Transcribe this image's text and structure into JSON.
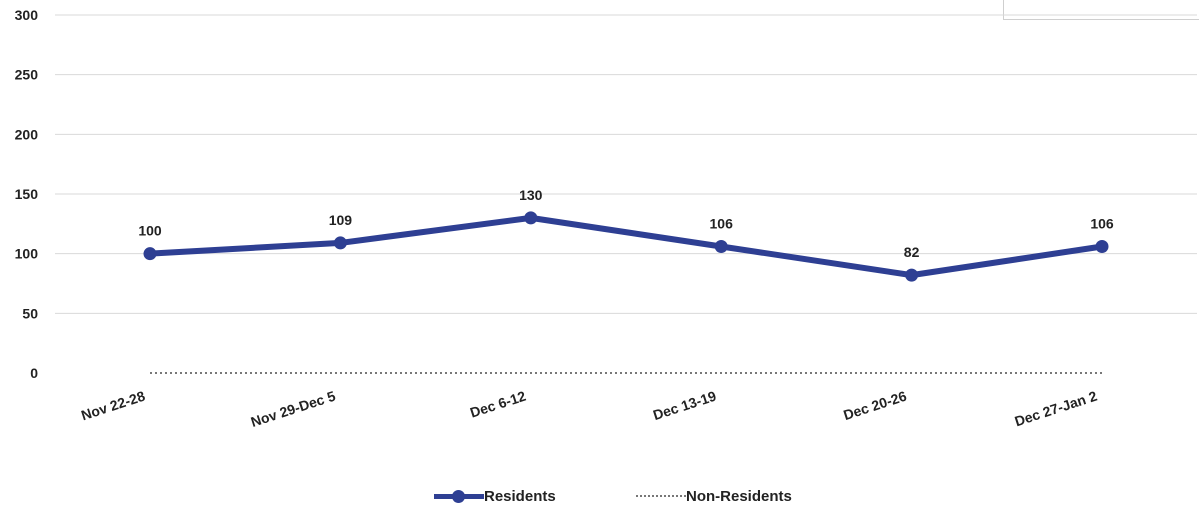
{
  "chart_data": {
    "type": "line",
    "categories": [
      "Nov 22-28",
      "Nov 29-Dec 5",
      "Dec 6-12",
      "Dec 13-19",
      "Dec 20-26",
      "Dec 27-Jan 2"
    ],
    "series": [
      {
        "name": "Residents",
        "values": [
          100,
          109,
          130,
          106,
          82,
          106
        ],
        "color": "#2e3f93",
        "style": "solid-with-markers",
        "data_labels": true
      },
      {
        "name": "Non-Residents",
        "values": [
          0,
          0,
          0,
          0,
          0,
          0
        ],
        "color": "#777777",
        "style": "dotted",
        "data_labels": false
      }
    ],
    "ylim": [
      0,
      300
    ],
    "yticks": [
      0,
      50,
      100,
      150,
      200,
      250,
      300
    ],
    "grid": true,
    "legend_position": "bottom",
    "title": "",
    "xlabel": "",
    "ylabel": ""
  }
}
